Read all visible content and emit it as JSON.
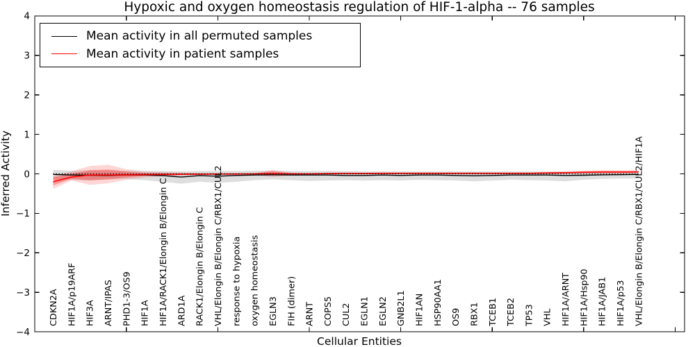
{
  "chart_data": {
    "type": "line",
    "title": "Hypoxic and oxygen homeostasis regulation of HIF-1-alpha -- 76 samples",
    "xlabel": "Cellular Entities",
    "ylabel": "Inferred Activity",
    "ylim": [
      -4,
      4
    ],
    "yticks": [
      4,
      3,
      2,
      1,
      0,
      -1,
      -2,
      -3,
      -4
    ],
    "ytick_labels": [
      "4",
      "3",
      "2",
      "1",
      "0",
      "−1",
      "−2",
      "−3",
      "−4"
    ],
    "xtick_positions": [
      5,
      10,
      15,
      20,
      25,
      30,
      35
    ],
    "grid": false,
    "legend": {
      "position": "upper left",
      "entries": [
        {
          "label": "Mean activity in all permuted samples",
          "color": "#000000"
        },
        {
          "label": "Mean activity in patient samples",
          "color": "#ff0000"
        }
      ]
    },
    "categories": [
      "CDKN2A",
      "HIF1A/p19ARF",
      "HIF3A",
      "ARNT/IPAS",
      "PHD1-3/OS9",
      "HIF1A",
      "HIF1A/RACK1/Elongin B/Elongin C",
      "ARD1A",
      "RACK1/Elongin B/Elongin C",
      "VHL/Elongin B/Elongin C/RBX1/CUL2",
      "response to hypoxia",
      "oxygen homeostasis",
      "EGLN3",
      "FIH (dimer)",
      "ARNT",
      "COPS5",
      "CUL2",
      "EGLN1",
      "EGLN2",
      "GNB2L1",
      "HIF1AN",
      "HSP90AA1",
      "OS9",
      "RBX1",
      "TCEB1",
      "TCEB2",
      "TP53",
      "VHL",
      "HIF1A/ARNT",
      "HIF1A/Hsp90",
      "HIF1A/JAB1",
      "HIF1A/p53",
      "VHL/Elongin B/Elongin C/RBX1/CUL2/HIF1A"
    ],
    "series": [
      {
        "name": "Mean activity in all permuted samples",
        "color": "#000000",
        "values": [
          -0.015,
          -0.03,
          -0.035,
          -0.04,
          -0.03,
          -0.03,
          -0.045,
          -0.08,
          -0.045,
          -0.06,
          -0.04,
          -0.03,
          -0.025,
          -0.03,
          -0.03,
          -0.03,
          -0.04,
          -0.04,
          -0.03,
          -0.04,
          -0.03,
          -0.03,
          -0.04,
          -0.05,
          -0.04,
          -0.03,
          -0.03,
          -0.03,
          -0.04,
          -0.035,
          -0.025,
          -0.02,
          -0.015
        ]
      },
      {
        "name": "Mean activity in patient samples",
        "color": "#ff0000",
        "values": [
          -0.2,
          -0.08,
          -0.03,
          -0.03,
          -0.025,
          -0.02,
          -0.015,
          -0.01,
          -0.01,
          -0.005,
          -0.005,
          0.0,
          0.005,
          0.0,
          0.0,
          0.005,
          0.01,
          0.01,
          0.015,
          0.015,
          0.015,
          0.015,
          0.015,
          0.015,
          0.015,
          0.015,
          0.015,
          0.02,
          0.03,
          0.04,
          0.045,
          0.045,
          0.05
        ]
      }
    ],
    "bands": [
      {
        "name": "permuted-std-band",
        "color": "#000000",
        "opacity": 0.13,
        "upper": [
          0.1,
          0.08,
          0.09,
          0.08,
          0.08,
          0.07,
          0.07,
          0.06,
          0.07,
          0.07,
          0.07,
          0.08,
          0.08,
          0.07,
          0.07,
          0.07,
          0.07,
          0.06,
          0.06,
          0.06,
          0.06,
          0.06,
          0.06,
          0.06,
          0.06,
          0.06,
          0.06,
          0.06,
          0.055,
          0.05,
          0.05,
          0.05,
          0.05
        ],
        "lower": [
          -0.13,
          -0.15,
          -0.17,
          -0.14,
          -0.13,
          -0.16,
          -0.2,
          -0.25,
          -0.2,
          -0.23,
          -0.2,
          -0.16,
          -0.14,
          -0.16,
          -0.18,
          -0.17,
          -0.16,
          -0.17,
          -0.16,
          -0.17,
          -0.15,
          -0.16,
          -0.17,
          -0.19,
          -0.17,
          -0.15,
          -0.16,
          -0.17,
          -0.19,
          -0.15,
          -0.13,
          -0.12,
          -0.12
        ]
      },
      {
        "name": "patient-outer-band",
        "color": "#ff0000",
        "opacity": 0.16,
        "upper": [
          -0.05,
          0.06,
          0.2,
          0.23,
          0.12,
          0.06,
          0.04,
          0.03,
          0.02,
          0.02,
          0.02,
          0.02,
          0.1,
          0.03,
          0.02,
          0.03,
          0.03,
          0.03,
          0.03,
          0.03,
          0.03,
          0.03,
          0.03,
          0.03,
          0.03,
          0.03,
          0.03,
          0.05,
          0.06,
          0.08,
          0.09,
          0.09,
          0.09
        ],
        "lower": [
          -0.38,
          -0.17,
          -0.28,
          -0.24,
          -0.15,
          -0.09,
          -0.06,
          -0.04,
          -0.03,
          -0.025,
          -0.02,
          -0.02,
          -0.08,
          -0.03,
          -0.02,
          -0.015,
          -0.01,
          -0.01,
          -0.005,
          -0.005,
          -0.005,
          -0.005,
          -0.005,
          -0.005,
          -0.005,
          -0.005,
          -0.01,
          -0.005,
          0.0,
          0.0,
          0.0,
          0.0,
          0.01
        ]
      },
      {
        "name": "patient-inner-band",
        "color": "#ff0000",
        "opacity": 0.3,
        "upper": [
          -0.09,
          0.0,
          0.09,
          0.11,
          0.06,
          0.02,
          0.015,
          0.01,
          0.01,
          0.01,
          0.01,
          0.01,
          0.06,
          0.015,
          0.01,
          0.02,
          0.02,
          0.02,
          0.025,
          0.025,
          0.025,
          0.025,
          0.025,
          0.025,
          0.025,
          0.025,
          0.025,
          0.035,
          0.045,
          0.06,
          0.07,
          0.07,
          0.07
        ],
        "lower": [
          -0.29,
          -0.13,
          -0.16,
          -0.14,
          -0.09,
          -0.05,
          -0.04,
          -0.03,
          -0.02,
          -0.015,
          -0.015,
          -0.01,
          -0.04,
          -0.015,
          -0.01,
          -0.005,
          0.0,
          0.0,
          0.005,
          0.005,
          0.005,
          0.005,
          0.005,
          0.005,
          0.005,
          0.005,
          0.005,
          0.01,
          0.015,
          0.025,
          0.03,
          0.03,
          0.035
        ]
      }
    ],
    "zero_line": {
      "style": "dotted",
      "color": "#000000",
      "value": 0
    }
  }
}
